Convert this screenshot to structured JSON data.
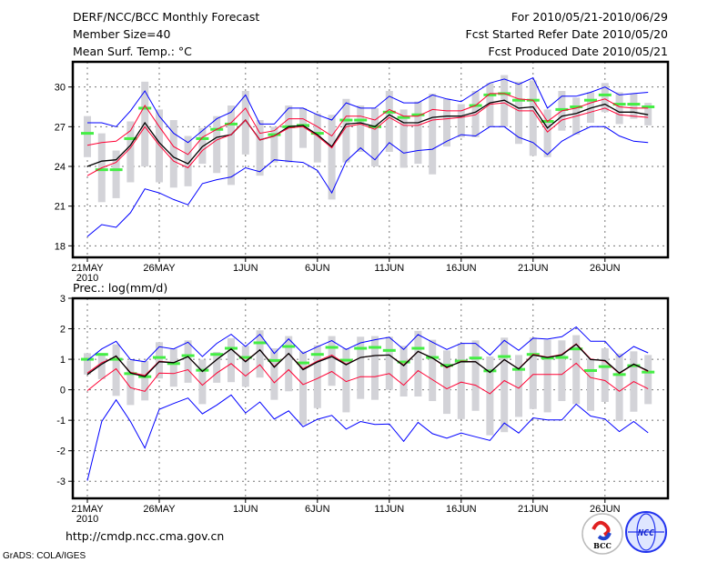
{
  "header": {
    "title": "DERF/NCC/BCC Monthly Forecast",
    "member_size": "Member Size=40",
    "variable": "Mean Surf. Temp.: °C",
    "period": "For 2010/05/21-2010/06/29",
    "started": "Fcst Started Refer Date 2010/05/20",
    "produced": "Fcst Produced Date 2010/05/21"
  },
  "footer": {
    "url": "http://cmdp.ncc.cma.gov.cn",
    "grads": "GrADS: COLA/IGES"
  },
  "logos": {
    "bcc": "BCC",
    "ncc": "NCC"
  },
  "colors": {
    "max_min": "#0000ff",
    "spread": "#ff0033",
    "mean": "#000000",
    "observed": "#44ee44",
    "range_bar": "#d3d3d8",
    "grid": "#777777"
  },
  "chart_data": [
    {
      "type": "line",
      "title": "Mean Surf. Temp.: °C",
      "xlabel": "",
      "ylabel": "",
      "days": 40,
      "x_ticks": [
        {
          "day": 0,
          "label": "21MAY",
          "sub": "2010"
        },
        {
          "day": 5,
          "label": "26MAY"
        },
        {
          "day": 11,
          "label": "1JUN"
        },
        {
          "day": 16,
          "label": "6JUN"
        },
        {
          "day": 21,
          "label": "11JUN"
        },
        {
          "day": 26,
          "label": "16JUN"
        },
        {
          "day": 31,
          "label": "21JUN"
        },
        {
          "day": 36,
          "label": "26JUN"
        }
      ],
      "y_ticks": [
        18,
        21,
        24,
        27,
        30
      ],
      "ylim": [
        17.13,
        31.9
      ],
      "grid": true,
      "series": [
        {
          "name": "ensemble max",
          "color": "#0000ff",
          "values": [
            27.3,
            27.3,
            27.0,
            28.2,
            29.7,
            27.8,
            26.5,
            25.8,
            26.7,
            27.6,
            28.1,
            29.4,
            27.2,
            27.2,
            28.4,
            28.4,
            27.9,
            27.5,
            28.8,
            28.4,
            28.4,
            29.3,
            28.8,
            28.8,
            29.4,
            29.1,
            28.9,
            29.6,
            30.3,
            30.6,
            30.2,
            30.7,
            28.4,
            29.3,
            29.3,
            29.6,
            30.0,
            29.4,
            29.5,
            29.6
          ]
        },
        {
          "name": "upper spread",
          "color": "#ff0033",
          "values": [
            25.6,
            25.8,
            25.9,
            26.7,
            28.6,
            27.0,
            25.5,
            24.9,
            26.2,
            26.8,
            27.3,
            28.4,
            26.5,
            26.7,
            27.6,
            27.6,
            27.0,
            26.3,
            27.8,
            27.8,
            27.5,
            28.3,
            27.8,
            27.8,
            28.3,
            28.2,
            28.2,
            28.6,
            29.5,
            29.5,
            29.1,
            29.0,
            27.4,
            28.2,
            28.4,
            28.8,
            29.1,
            28.5,
            28.4,
            28.4
          ]
        },
        {
          "name": "ensemble mean",
          "color": "#000000",
          "values": [
            24.0,
            24.4,
            24.5,
            25.6,
            27.3,
            25.8,
            24.7,
            24.2,
            25.5,
            26.2,
            26.4,
            27.5,
            26.0,
            26.3,
            27.0,
            27.1,
            26.4,
            25.5,
            27.2,
            27.3,
            27.0,
            27.9,
            27.3,
            27.3,
            27.7,
            27.8,
            27.8,
            28.1,
            28.8,
            29.0,
            28.4,
            28.5,
            26.9,
            27.8,
            28.0,
            28.4,
            28.7,
            28.1,
            28.1,
            27.9
          ]
        },
        {
          "name": "lower spread",
          "color": "#ff0033",
          "values": [
            23.3,
            23.9,
            24.3,
            25.4,
            27.0,
            25.6,
            24.4,
            23.9,
            25.2,
            26.0,
            26.4,
            27.5,
            26.0,
            26.3,
            26.9,
            27.0,
            26.3,
            25.4,
            27.0,
            27.2,
            26.8,
            27.7,
            27.1,
            27.1,
            27.5,
            27.6,
            27.7,
            27.9,
            28.7,
            28.8,
            28.2,
            28.2,
            26.6,
            27.5,
            27.8,
            28.1,
            28.4,
            27.9,
            27.8,
            27.7
          ]
        },
        {
          "name": "ensemble min",
          "color": "#0000ff",
          "values": [
            18.7,
            19.6,
            19.4,
            20.5,
            22.3,
            22.0,
            21.5,
            21.1,
            22.7,
            23.0,
            23.2,
            23.9,
            23.6,
            24.5,
            24.4,
            24.3,
            23.7,
            22.0,
            24.4,
            25.4,
            24.5,
            25.8,
            25.0,
            25.2,
            25.3,
            25.9,
            26.4,
            26.3,
            27.0,
            27.0,
            26.2,
            25.8,
            24.9,
            25.9,
            26.5,
            27.0,
            27.0,
            26.3,
            25.9,
            25.8
          ]
        }
      ],
      "observed": [
        26.5,
        23.75,
        23.75,
        26.1,
        28.4,
        null,
        null,
        null,
        26.1,
        26.8,
        27.2,
        null,
        null,
        26.4,
        27.0,
        27.1,
        26.5,
        null,
        27.5,
        27.5,
        27.0,
        28.1,
        27.7,
        27.9,
        null,
        null,
        null,
        28.6,
        29.4,
        29.5,
        29.0,
        29.0,
        27.4,
        28.3,
        28.5,
        29.0,
        29.4,
        28.7,
        28.7,
        28.5
      ],
      "range_high": [
        27.8,
        26.5,
        25.2,
        27.4,
        30.4,
        28.3,
        27.5,
        26.3,
        26.9,
        27.8,
        28.6,
        29.7,
        27.5,
        27.0,
        28.6,
        28.4,
        28.0,
        27.9,
        29.1,
        28.6,
        28.4,
        29.7,
        28.3,
        28.9,
        29.5,
        29.1,
        28.7,
        29.7,
        30.3,
        30.9,
        30.4,
        30.5,
        28.3,
        29.7,
        29.2,
        29.6,
        30.3,
        29.6,
        29.5,
        28.8
      ],
      "range_low": [
        24.7,
        21.3,
        21.6,
        22.8,
        24.0,
        22.8,
        22.4,
        22.5,
        24.2,
        23.5,
        22.6,
        24.9,
        23.3,
        24.3,
        24.3,
        25.4,
        24.3,
        21.5,
        24.3,
        25.1,
        24.0,
        25.1,
        23.9,
        24.2,
        23.4,
        25.5,
        26.2,
        26.2,
        27.0,
        27.0,
        25.7,
        24.8,
        24.7,
        26.7,
        26.4,
        27.3,
        28.1,
        27.2,
        27.6,
        27.1
      ]
    },
    {
      "type": "line",
      "title": "Prec.: log(mm/d)",
      "xlabel": "",
      "ylabel": "",
      "days": 40,
      "x_ticks": [
        {
          "day": 0,
          "label": "21MAY",
          "sub": "2010"
        },
        {
          "day": 5,
          "label": "26MAY"
        },
        {
          "day": 11,
          "label": "1JUN"
        },
        {
          "day": 16,
          "label": "6JUN"
        },
        {
          "day": 21,
          "label": "11JUN"
        },
        {
          "day": 26,
          "label": "16JUN"
        },
        {
          "day": 31,
          "label": "21JUN"
        },
        {
          "day": 36,
          "label": "26JUN"
        }
      ],
      "y_ticks": [
        -3,
        -2,
        -1,
        0,
        1,
        2,
        3
      ],
      "ylim": [
        -3.56,
        3
      ],
      "grid": true,
      "series": [
        {
          "name": "ensemble max",
          "color": "#0000ff",
          "values": [
            0.96,
            1.34,
            1.59,
            0.99,
            0.92,
            1.41,
            1.34,
            1.56,
            1.09,
            1.52,
            1.82,
            1.42,
            1.82,
            1.19,
            1.67,
            1.19,
            1.41,
            1.61,
            1.32,
            1.54,
            1.64,
            1.72,
            1.32,
            1.81,
            1.56,
            1.32,
            1.52,
            1.52,
            1.14,
            1.62,
            1.29,
            1.69,
            1.66,
            1.74,
            2.06,
            1.59,
            1.59,
            1.07,
            1.42,
            1.21
          ]
        },
        {
          "name": "upper spread",
          "color": "#ff0033",
          "values": [
            0.55,
            0.89,
            1.09,
            0.57,
            0.47,
            0.94,
            0.89,
            1.09,
            0.6,
            0.99,
            1.34,
            0.94,
            1.31,
            0.76,
            1.19,
            0.69,
            0.94,
            1.14,
            0.84,
            1.06,
            1.12,
            1.14,
            0.81,
            1.26,
            1.04,
            0.72,
            0.94,
            0.92,
            0.57,
            0.99,
            0.69,
            1.16,
            1.07,
            1.16,
            1.51,
            1.01,
            0.94,
            0.53,
            0.84,
            0.6
          ]
        },
        {
          "name": "ensemble mean",
          "color": "#000000",
          "values": [
            0.5,
            0.84,
            1.11,
            0.55,
            0.43,
            0.92,
            0.89,
            1.09,
            0.6,
            0.99,
            1.34,
            0.92,
            1.31,
            0.74,
            1.19,
            0.66,
            0.91,
            1.09,
            0.82,
            1.06,
            1.12,
            1.14,
            0.79,
            1.26,
            1.04,
            0.74,
            0.92,
            0.92,
            0.57,
            0.99,
            0.68,
            1.14,
            1.06,
            1.14,
            1.49,
            0.99,
            0.96,
            0.55,
            0.84,
            0.62
          ]
        },
        {
          "name": "lower spread",
          "color": "#ff0033",
          "values": [
            -0.03,
            0.35,
            0.69,
            0.07,
            -0.05,
            0.55,
            0.53,
            0.66,
            0.15,
            0.55,
            0.86,
            0.45,
            0.82,
            0.23,
            0.66,
            0.17,
            0.37,
            0.6,
            0.27,
            0.43,
            0.43,
            0.53,
            0.15,
            0.63,
            0.33,
            0.03,
            0.25,
            0.15,
            -0.13,
            0.3,
            0.05,
            0.5,
            0.5,
            0.5,
            0.87,
            0.4,
            0.3,
            -0.05,
            0.27,
            0.03
          ]
        },
        {
          "name": "ensemble min",
          "color": "#0000ff",
          "values": [
            -2.98,
            -1.04,
            -0.33,
            -1.04,
            -1.91,
            -0.64,
            -0.45,
            -0.27,
            -0.79,
            -0.5,
            -0.17,
            -0.76,
            -0.4,
            -0.96,
            -0.69,
            -1.21,
            -0.97,
            -0.84,
            -1.29,
            -1.04,
            -1.14,
            -1.12,
            -1.69,
            -1.07,
            -1.44,
            -1.59,
            -1.42,
            -1.54,
            -1.66,
            -1.09,
            -1.42,
            -0.92,
            -0.99,
            -0.99,
            -0.47,
            -0.86,
            -0.96,
            -1.37,
            -1.04,
            -1.41
          ]
        }
      ],
      "observed": [
        1.0,
        1.16,
        1.0,
        0.53,
        0.43,
        1.06,
        0.86,
        1.12,
        0.64,
        1.16,
        1.36,
        1.06,
        1.54,
        0.96,
        1.42,
        0.88,
        1.16,
        1.39,
        0.97,
        1.36,
        1.39,
        1.29,
        0.91,
        1.36,
        1.06,
        0.8,
        0.94,
        1.04,
        0.62,
        1.09,
        0.67,
        1.16,
        1.04,
        1.06,
        1.34,
        0.63,
        0.76,
        0.5,
        0.79,
        0.58
      ],
      "range_high": [
        1.2,
        1.2,
        1.49,
        0.96,
        0.94,
        1.56,
        1.34,
        1.62,
        0.99,
        1.24,
        1.69,
        1.44,
        1.95,
        1.36,
        1.76,
        1.26,
        1.46,
        1.76,
        1.36,
        1.74,
        1.76,
        1.74,
        1.44,
        1.93,
        1.64,
        1.29,
        1.52,
        1.62,
        1.09,
        1.71,
        1.14,
        1.71,
        1.64,
        1.62,
        1.79,
        1.02,
        1.36,
        1.19,
        1.26,
        1.14
      ],
      "range_low": [
        0.5,
        0.35,
        -0.2,
        -0.5,
        -0.35,
        0.37,
        0.1,
        0.23,
        -0.47,
        0.23,
        0.25,
        0.1,
        0.4,
        -0.33,
        -0.05,
        -1.14,
        -0.6,
        0.13,
        -0.74,
        -0.3,
        -0.33,
        0.0,
        -0.22,
        -0.22,
        -0.37,
        -0.79,
        -0.96,
        -0.69,
        -1.49,
        -1.39,
        -0.89,
        -0.63,
        -0.74,
        -0.37,
        -0.47,
        -0.69,
        -0.4,
        -1.02,
        -0.72,
        -0.47
      ]
    }
  ]
}
